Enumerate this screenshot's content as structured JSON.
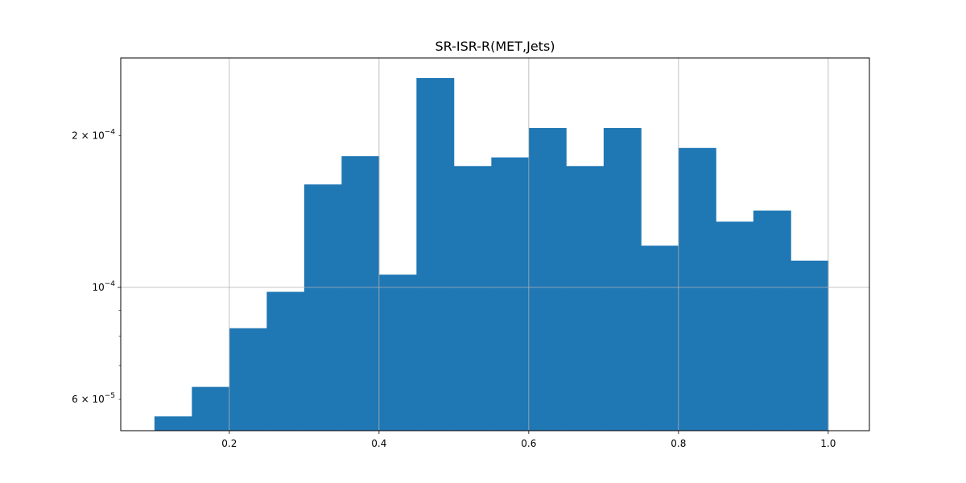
{
  "chart_data": {
    "type": "bar",
    "title": "SR-ISR-R(MET,Jets)",
    "xlabel": "",
    "ylabel": "",
    "y_scale": "log",
    "grid": true,
    "color": "#1f77b4",
    "xlim": [
      0.055,
      1.055
    ],
    "ylim": [
      5.2e-05,
      0.000285
    ],
    "bin_edges": [
      0.1,
      0.15,
      0.2,
      0.25,
      0.3,
      0.35,
      0.4,
      0.45,
      0.5,
      0.55,
      0.6,
      0.65,
      0.7,
      0.75,
      0.8,
      0.85,
      0.9,
      0.95,
      1.0
    ],
    "values": [
      5.55e-05,
      6.35e-05,
      8.3e-05,
      9.8e-05,
      0.00016,
      0.000182,
      0.000106,
      0.00026,
      0.000174,
      0.000181,
      0.000207,
      0.000174,
      0.000207,
      0.000121,
      0.000189,
      0.000135,
      0.000142,
      0.000113
    ],
    "x_ticks": [
      {
        "value": 0.2,
        "label": "0.2"
      },
      {
        "value": 0.4,
        "label": "0.4"
      },
      {
        "value": 0.6,
        "label": "0.6"
      },
      {
        "value": 0.8,
        "label": "0.8"
      },
      {
        "value": 1.0,
        "label": "1.0"
      }
    ],
    "y_major_ticks": [
      {
        "value": 0.0001,
        "mantissa": "",
        "exponent": "−4"
      }
    ],
    "y_labeled_minor_ticks": [
      {
        "value": 6e-05,
        "mantissa": "6",
        "exponent": "−5"
      },
      {
        "value": 0.0002,
        "mantissa": "2",
        "exponent": "−4"
      }
    ],
    "y_minor_ticks": [
      6e-05,
      7e-05,
      8e-05,
      9e-05,
      0.0002
    ]
  }
}
